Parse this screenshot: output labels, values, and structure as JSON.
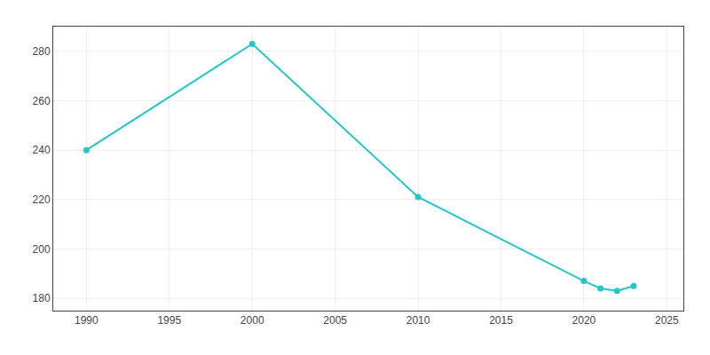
{
  "chart_data": {
    "type": "line",
    "x": [
      1990,
      2000,
      2010,
      2020,
      2021,
      2022,
      2023
    ],
    "values": [
      240,
      283,
      221,
      187,
      184,
      183,
      185
    ],
    "color": "#26C6C6",
    "marker": "circle",
    "xlim": [
      1988,
      2026
    ],
    "ylim": [
      175,
      290
    ],
    "xticks": [
      1990,
      1995,
      2000,
      2005,
      2010,
      2015,
      2020,
      2025
    ],
    "yticks": [
      180,
      200,
      220,
      240,
      260,
      280
    ],
    "grid": true
  }
}
